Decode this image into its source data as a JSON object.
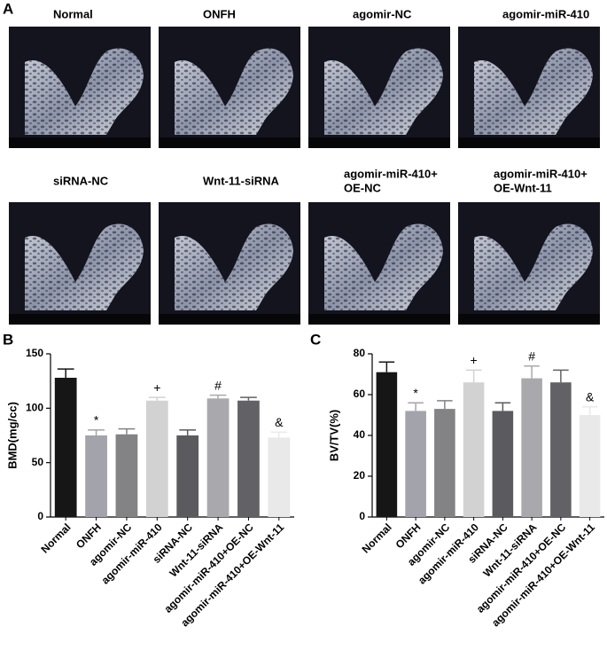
{
  "panel_labels": [
    "A",
    "B",
    "C"
  ],
  "images": [
    {
      "label": [
        "Normal"
      ]
    },
    {
      "label": [
        "ONFH"
      ]
    },
    {
      "label": [
        "agomir-NC"
      ]
    },
    {
      "label": [
        "agomir-miR-410"
      ]
    },
    {
      "label": [
        "siRNA-NC"
      ]
    },
    {
      "label": [
        "Wnt-11-siRNA"
      ]
    },
    {
      "label": [
        "agomir-miR-410+",
        "OE-NC"
      ]
    },
    {
      "label": [
        "agomir-miR-410+",
        "OE-Wnt-11"
      ]
    }
  ],
  "chart_data": [
    {
      "type": "bar",
      "y_label": "BMD(mg/cc)",
      "categories": [
        "Normal",
        "ONFH",
        "agomir-NC",
        "agomir-miR-410",
        "siRNA-NC",
        "Wnt-11-siRNA",
        "agomir-miR-410+OE-NC",
        "agomir-miR-410+OE-Wnt-11"
      ],
      "values": [
        128,
        75,
        76,
        107,
        75,
        109,
        107,
        73
      ],
      "errors": [
        8,
        5,
        5,
        3,
        5,
        3,
        3,
        5
      ],
      "annotations": [
        null,
        "*",
        null,
        "+",
        null,
        "#",
        null,
        "&"
      ],
      "colors": [
        "#161616",
        "#a3a3ab",
        "#838385",
        "#d2d2d2",
        "#5b5b5f",
        "#a9a9ad",
        "#626266",
        "#e9e9e9"
      ],
      "ylim": [
        0,
        150
      ],
      "yticks": [
        0,
        50,
        100,
        150
      ]
    },
    {
      "type": "bar",
      "y_label": "BV/TV(%)",
      "categories": [
        "Normal",
        "ONFH",
        "agomir-NC",
        "agomir-miR-410",
        "siRNA-NC",
        "Wnt-11-siRNA",
        "agomir-miR-410+OE-NC",
        "agomir-miR-410+OE-Wnt-11"
      ],
      "values": [
        71,
        52,
        53,
        66,
        52,
        68,
        66,
        50
      ],
      "errors": [
        5,
        4,
        4,
        6,
        4,
        6,
        6,
        4
      ],
      "annotations": [
        null,
        "*",
        null,
        "+",
        null,
        "#",
        null,
        "&"
      ],
      "colors": [
        "#161616",
        "#a3a3ab",
        "#838385",
        "#d2d2d2",
        "#5b5b5f",
        "#a9a9ad",
        "#626266",
        "#e9e9e9"
      ],
      "ylim": [
        0,
        80
      ],
      "yticks": [
        0,
        20,
        40,
        60,
        80
      ]
    }
  ]
}
